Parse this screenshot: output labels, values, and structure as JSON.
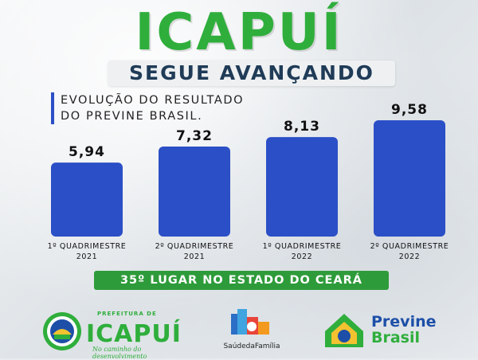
{
  "header": {
    "title": "ICAPUÍ",
    "subtitle": "SEGUE AVANÇANDO",
    "description_line1": "EVOLUÇÃO DO RESULTADO",
    "description_line2": "DO PREVINE BRASIL."
  },
  "chart_data": {
    "type": "bar",
    "categories": [
      [
        "1º QUADRIMESTRE",
        "2021"
      ],
      [
        "2º QUADRIMESTRE",
        "2021"
      ],
      [
        "1º QUADRIMESTRE",
        "2022"
      ],
      [
        "2º QUADRIMESTRE",
        "2022"
      ]
    ],
    "values": [
      5.94,
      7.32,
      8.13,
      9.58
    ],
    "value_labels": [
      "5,94",
      "7,32",
      "8,13",
      "9,58"
    ],
    "title": "",
    "xlabel": "",
    "ylabel": "",
    "ylim": [
      0,
      11.7
    ],
    "grid": false,
    "legend": "none",
    "bar_color": "#2b4fc6"
  },
  "badge": {
    "text": "35º LUGAR NO ESTADO DO CEARÁ"
  },
  "footer": {
    "prefeitura_text": "PREFEITURA DE",
    "icapui_logo_text": "ICAPUÍ",
    "icapui_slogan": "No caminho do desenvolvimento",
    "saude_text": "SaúdedaFamília",
    "previne_line1": "Previne",
    "previne_line2": "Brasil"
  },
  "colors": {
    "brand_green": "#2fae3c",
    "bar_blue": "#2b4fc6",
    "badge_green": "#2e9b3a",
    "dark_text": "#1f3b57"
  }
}
